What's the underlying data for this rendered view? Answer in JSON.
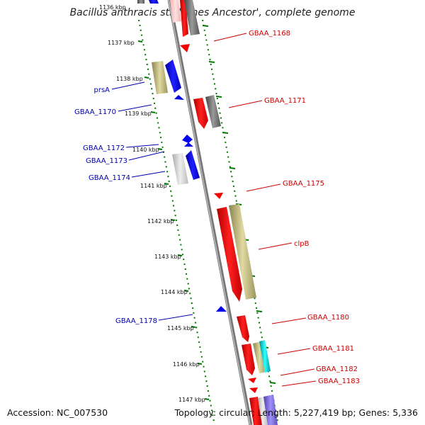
{
  "title": "Bacillus anthracis str. 'Ames Ancestor', complete genome",
  "footer": {
    "accession": "Accession: NC_007530",
    "topology": "Topology: circular; Length: 5,227,419 bp; Genes: 5,336"
  },
  "kbp_labels": [
    "1136 kbp",
    "1137 kbp",
    "1138 kbp",
    "1139 kbp",
    "1140 kbp",
    "1141 kbp",
    "1142 kbp",
    "1143 kbp",
    "1144 kbp",
    "1145 kbp",
    "1146 kbp",
    "1147 kbp"
  ],
  "gene_labels_left": [
    "prsA",
    "GBAA_1170",
    "GBAA_1172",
    "GBAA_1173",
    "GBAA_1174",
    "GBAA_1178"
  ],
  "gene_labels_right": [
    "GBAA_1168",
    "GBAA_1171",
    "GBAA_1175",
    "clpB",
    "GBAA_1180",
    "GBAA_1181",
    "GBAA_1182",
    "GBAA_1183"
  ],
  "colors": {
    "forward": "#ff0000",
    "reverse": "#0000ff",
    "backbone": "#888888",
    "ticks": "#007700",
    "label_blue": "#0000aa",
    "label_red": "#cc0000"
  }
}
